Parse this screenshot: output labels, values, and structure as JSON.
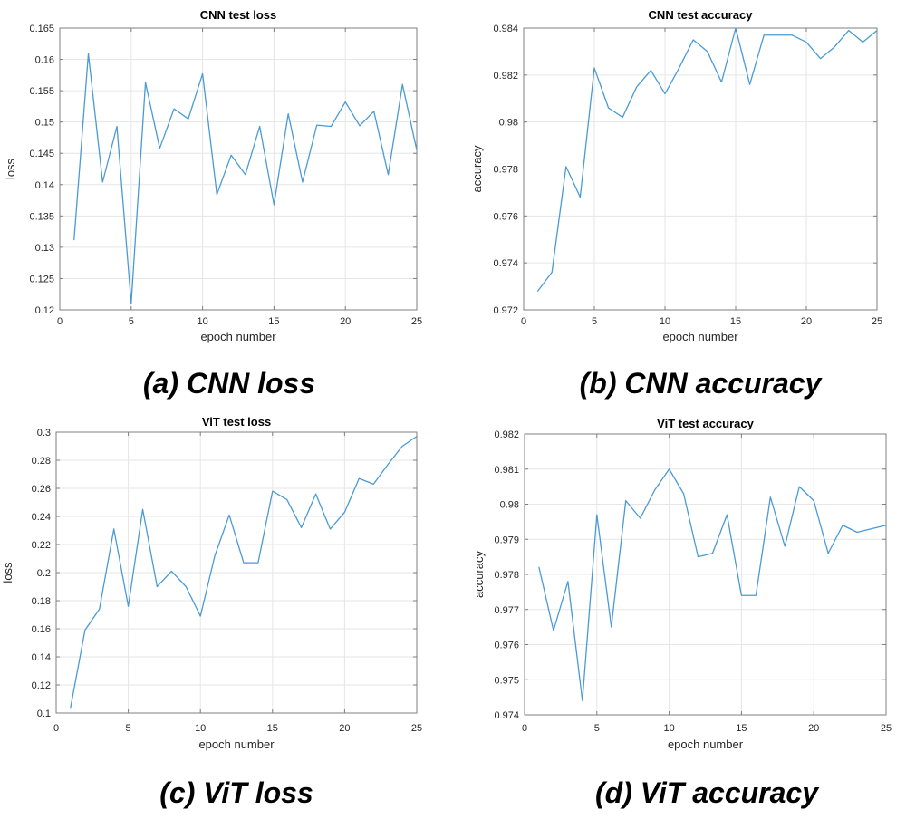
{
  "style": {
    "background": "#ffffff",
    "line_color": "#4a9ad5",
    "grid_color": "#e6e6e6",
    "axis_color": "#7f7f7f",
    "tick_label_color": "#262626",
    "title_color": "#000000",
    "caption_color": "#000000"
  },
  "chart_data": [
    {
      "type": "line",
      "title": "CNN test loss",
      "xlabel": "epoch number",
      "ylabel": "loss",
      "caption": "(a) CNN loss",
      "legend_position": "none",
      "grid": true,
      "xlim": [
        0,
        25
      ],
      "ylim": [
        0.12,
        0.165
      ],
      "xticks": [
        0,
        5,
        10,
        15,
        20,
        25
      ],
      "yticks": [
        0.12,
        0.125,
        0.13,
        0.135,
        0.14,
        0.145,
        0.15,
        0.155,
        0.16,
        0.165
      ],
      "x": [
        1,
        2,
        3,
        4,
        5,
        6,
        7,
        8,
        9,
        10,
        11,
        12,
        13,
        14,
        15,
        16,
        17,
        18,
        19,
        20,
        21,
        22,
        23,
        24,
        25
      ],
      "y": [
        0.1312,
        0.1609,
        0.1404,
        0.1493,
        0.121,
        0.1563,
        0.1458,
        0.1521,
        0.1505,
        0.1577,
        0.1384,
        0.1447,
        0.1416,
        0.1493,
        0.1368,
        0.1513,
        0.1404,
        0.1495,
        0.1493,
        0.1532,
        0.1494,
        0.1517,
        0.1416,
        0.156,
        0.1455
      ]
    },
    {
      "type": "line",
      "title": "CNN test accuracy",
      "xlabel": "epoch number",
      "ylabel": "accuracy",
      "caption": "(b) CNN accuracy",
      "legend_position": "none",
      "grid": true,
      "xlim": [
        0,
        25
      ],
      "ylim": [
        0.972,
        0.984
      ],
      "xticks": [
        0,
        5,
        10,
        15,
        20,
        25
      ],
      "yticks": [
        0.972,
        0.974,
        0.976,
        0.978,
        0.98,
        0.982,
        0.984
      ],
      "x": [
        1,
        2,
        3,
        4,
        5,
        6,
        7,
        8,
        9,
        10,
        11,
        12,
        13,
        14,
        15,
        16,
        17,
        18,
        19,
        20,
        21,
        22,
        23,
        24,
        25
      ],
      "y": [
        0.9728,
        0.9736,
        0.9781,
        0.9768,
        0.9823,
        0.9806,
        0.9802,
        0.9815,
        0.9822,
        0.9812,
        0.9823,
        0.9835,
        0.983,
        0.9817,
        0.984,
        0.9816,
        0.9837,
        0.9837,
        0.9837,
        0.9834,
        0.9827,
        0.9832,
        0.9839,
        0.9834,
        0.9839
      ]
    },
    {
      "type": "line",
      "title": "ViT test loss",
      "xlabel": "epoch number",
      "ylabel": "loss",
      "caption": "(c) ViT loss",
      "legend_position": "none",
      "grid": true,
      "xlim": [
        0,
        25
      ],
      "ylim": [
        0.1,
        0.3
      ],
      "xticks": [
        0,
        5,
        10,
        15,
        20,
        25
      ],
      "yticks": [
        0.1,
        0.12,
        0.14,
        0.16,
        0.18,
        0.2,
        0.22,
        0.24,
        0.26,
        0.28,
        0.3
      ],
      "x": [
        1,
        2,
        3,
        4,
        5,
        6,
        7,
        8,
        9,
        10,
        11,
        12,
        13,
        14,
        15,
        16,
        17,
        18,
        19,
        20,
        21,
        22,
        23,
        24,
        25
      ],
      "y": [
        0.104,
        0.159,
        0.174,
        0.231,
        0.176,
        0.245,
        0.19,
        0.201,
        0.19,
        0.169,
        0.212,
        0.241,
        0.207,
        0.207,
        0.258,
        0.252,
        0.232,
        0.256,
        0.231,
        0.243,
        0.267,
        0.263,
        0.277,
        0.29,
        0.297
      ]
    },
    {
      "type": "line",
      "title": "ViT test accuracy",
      "xlabel": "epoch number",
      "ylabel": "accuracy",
      "caption": "(d) ViT accuracy",
      "legend_position": "none",
      "grid": true,
      "xlim": [
        0,
        25
      ],
      "ylim": [
        0.974,
        0.982
      ],
      "xticks": [
        0,
        5,
        10,
        15,
        20,
        25
      ],
      "yticks": [
        0.974,
        0.975,
        0.976,
        0.977,
        0.978,
        0.979,
        0.98,
        0.981,
        0.982
      ],
      "x": [
        1,
        2,
        3,
        4,
        5,
        6,
        7,
        8,
        9,
        10,
        11,
        12,
        13,
        14,
        15,
        16,
        17,
        18,
        19,
        20,
        21,
        22,
        23,
        24,
        25
      ],
      "y": [
        0.9782,
        0.9764,
        0.9778,
        0.9744,
        0.9797,
        0.9765,
        0.9801,
        0.9796,
        0.9804,
        0.981,
        0.9803,
        0.9785,
        0.9786,
        0.9797,
        0.9774,
        0.9774,
        0.9802,
        0.9788,
        0.9805,
        0.9801,
        0.9786,
        0.9794,
        0.9792,
        0.9793,
        0.9794
      ]
    }
  ]
}
